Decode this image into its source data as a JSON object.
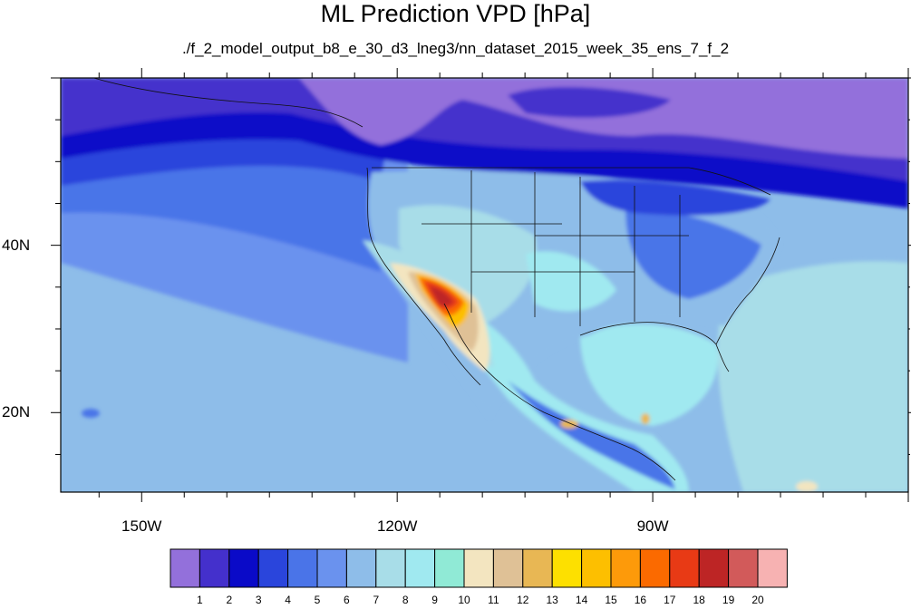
{
  "figure": {
    "title": "ML Prediction VPD [hPa]",
    "subtitle": "./f_2_model_output_b8_e_30_d3_lneg3/nn_dataset_2015_week_35_ens_7_f_2"
  },
  "axes": {
    "lon_ticks": [
      {
        "value": -150,
        "label": "150W"
      },
      {
        "value": -120,
        "label": "120W"
      },
      {
        "value": -90,
        "label": "90W"
      }
    ],
    "lat_ticks": [
      {
        "value": 40,
        "label": "40N"
      },
      {
        "value": 20,
        "label": "20N"
      }
    ],
    "lon_range": [
      -159.5,
      -60
    ],
    "lat_range": [
      10.5,
      60
    ]
  },
  "colorbar": {
    "levels": [
      "1",
      "2",
      "3",
      "4",
      "5",
      "6",
      "7",
      "8",
      "9",
      "10",
      "11",
      "12",
      "13",
      "14",
      "15",
      "16",
      "17",
      "18",
      "19",
      "20"
    ],
    "colors": [
      "#9370db",
      "#4430cc",
      "#0a0ac8",
      "#2a45dc",
      "#4a74e8",
      "#6a92ee",
      "#8ebde9",
      "#a8dde8",
      "#a0e9f0",
      "#90ead6",
      "#f3e5c0",
      "#dfc196",
      "#e8b754",
      "#fde000",
      "#fdbf00",
      "#fd9a0a",
      "#fb6a00",
      "#e83a15",
      "#bd2525",
      "#d25a5a",
      "#f7b2b2"
    ]
  }
}
